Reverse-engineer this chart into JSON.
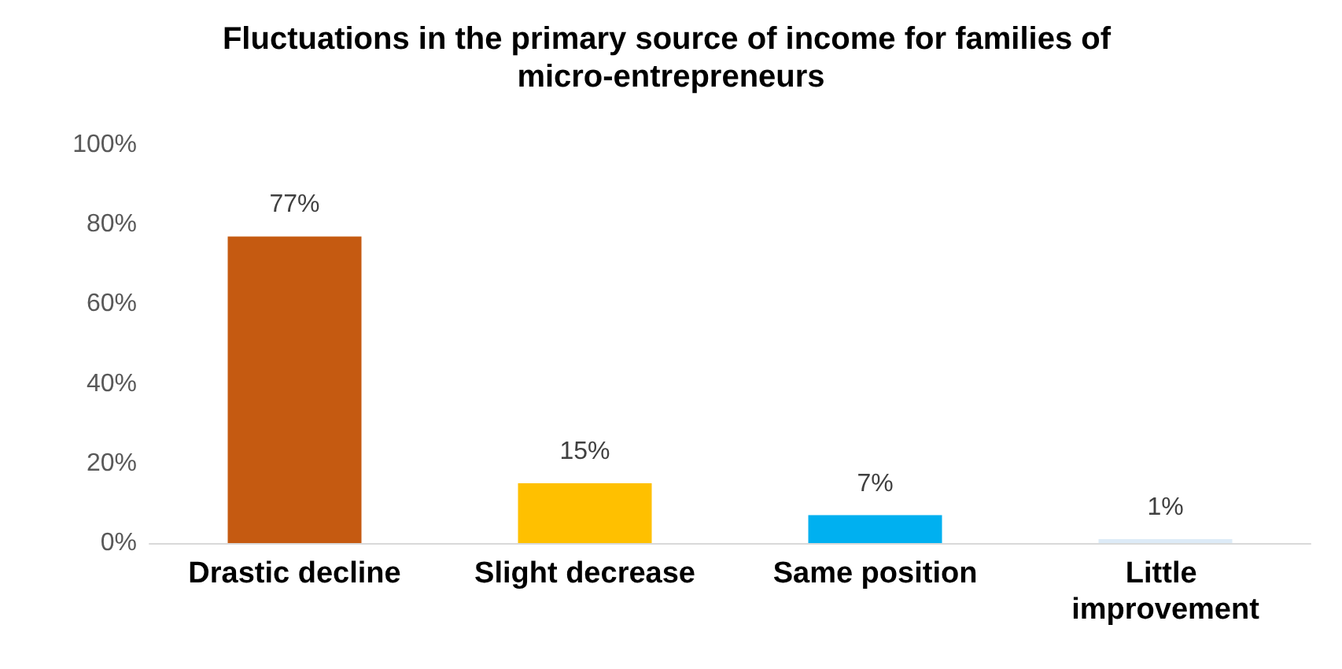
{
  "chart_data": {
    "type": "bar",
    "title": "Fluctuations in the primary source of income for families of micro-entrepreneurs",
    "categories": [
      "Drastic decline",
      "Slight decrease",
      "Same position",
      "Little improvement"
    ],
    "values": [
      77,
      15,
      7,
      1
    ],
    "colors": [
      "#c55a11",
      "#ffc000",
      "#00b0f0",
      "#ddebf7"
    ],
    "value_labels": [
      "77%",
      "15%",
      "7%",
      "1%"
    ],
    "ylim": [
      0,
      100
    ],
    "yticks": [
      {
        "value": 0,
        "label": "0%"
      },
      {
        "value": 20,
        "label": "20%"
      },
      {
        "value": 40,
        "label": "40%"
      },
      {
        "value": 60,
        "label": "60%"
      },
      {
        "value": 80,
        "label": "80%"
      },
      {
        "value": 100,
        "label": "100%"
      }
    ],
    "grid": false
  }
}
